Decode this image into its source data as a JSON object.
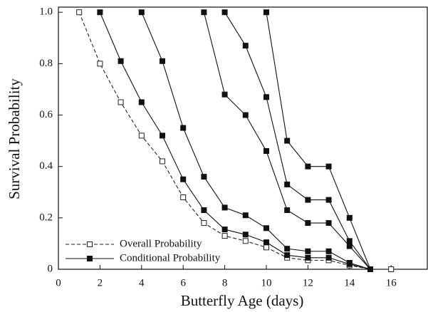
{
  "chart_data": {
    "type": "line",
    "x_label": "Butterfly Age (days)",
    "y_label": "Survival Probability",
    "xlim": [
      0,
      17.74
    ],
    "xticks": [
      0,
      2,
      4,
      6,
      8,
      10,
      12,
      14,
      16
    ],
    "ylim": [
      0,
      1.02
    ],
    "yticks": [
      0,
      0.2,
      0.4,
      0.6,
      0.8,
      {
        "value": 1,
        "label": "1.0"
      }
    ],
    "grid": false,
    "legend": "lower left",
    "series": [
      {
        "name": "Overall Probability",
        "color": "#222222",
        "style": "dashed",
        "marker": "open",
        "x": [
          1,
          2,
          3,
          4,
          5,
          6,
          7,
          8,
          9,
          10,
          11,
          12,
          13,
          14,
          15,
          16
        ],
        "values": [
          1.0,
          0.8,
          0.65,
          0.52,
          0.42,
          0.28,
          0.18,
          0.13,
          0.11,
          0.085,
          0.045,
          0.035,
          0.035,
          0.015,
          0,
          0
        ]
      },
      {
        "name": "Conditional Probability",
        "color": "#111111",
        "style": "solid",
        "marker": "filled",
        "curves": [
          {
            "x": [
              2,
              3,
              4,
              5,
              6,
              7,
              8,
              9,
              10,
              11,
              12,
              13,
              14,
              15
            ],
            "values": [
              1.0,
              0.81,
              0.65,
              0.52,
              0.35,
              0.23,
              0.155,
              0.135,
              0.105,
              0.055,
              0.045,
              0.045,
              0.02,
              0
            ]
          },
          {
            "x": [
              4,
              5,
              6,
              7,
              8,
              9,
              10,
              11,
              12,
              13,
              14,
              15
            ],
            "values": [
              1.0,
              0.81,
              0.55,
              0.36,
              0.24,
              0.21,
              0.16,
              0.08,
              0.07,
              0.07,
              0.025,
              0
            ]
          },
          {
            "x": [
              7,
              8,
              9,
              10,
              11,
              12,
              13,
              14,
              15
            ],
            "values": [
              1.0,
              0.68,
              0.6,
              0.46,
              0.23,
              0.18,
              0.18,
              0.09,
              0
            ]
          },
          {
            "x": [
              8,
              9,
              10,
              11,
              12,
              13,
              14,
              15
            ],
            "values": [
              1.0,
              0.87,
              0.67,
              0.33,
              0.27,
              0.27,
              0.11,
              0
            ]
          },
          {
            "x": [
              10,
              11,
              12,
              13,
              14,
              15
            ],
            "values": [
              1.0,
              0.5,
              0.4,
              0.4,
              0.2,
              0
            ]
          }
        ]
      }
    ]
  }
}
